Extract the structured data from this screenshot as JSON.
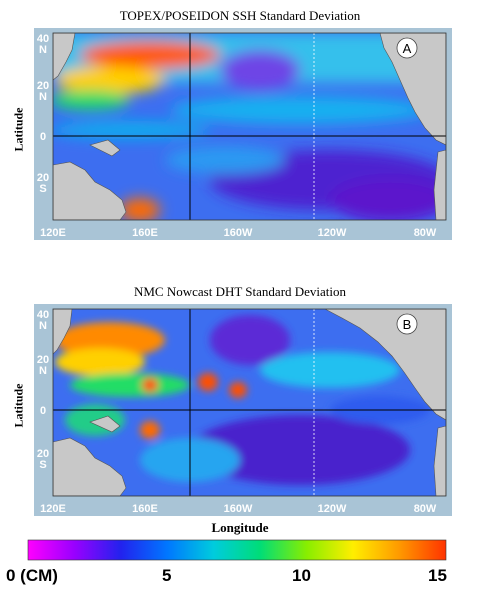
{
  "panels": [
    {
      "title": "TOPEX/POSEIDON SSH Standard Deviation",
      "badge": "A",
      "ylabel": "Latitude",
      "lat_labels": [
        [
          "40",
          "N"
        ],
        [
          "20",
          "N"
        ],
        [
          "0",
          ""
        ],
        [
          "20",
          "S"
        ]
      ],
      "lon_labels": [
        "120E",
        "160E",
        "160W",
        "120W",
        "80W"
      ]
    },
    {
      "title": "NMC Nowcast DHT Standard Deviation",
      "badge": "B",
      "ylabel": "Latitude",
      "lat_labels": [
        [
          "40",
          "N"
        ],
        [
          "20",
          "N"
        ],
        [
          "0",
          ""
        ],
        [
          "20",
          "S"
        ]
      ],
      "lon_labels": [
        "120E",
        "160E",
        "160W",
        "120W",
        "80W"
      ]
    }
  ],
  "xlabel": "Longitude",
  "colorbar": {
    "unit_label": "0 (CM)",
    "ticks": [
      "5",
      "10",
      "15"
    ],
    "range": [
      0,
      15
    ],
    "colors": [
      "#ff00ff",
      "#9900ff",
      "#2222ee",
      "#0077ff",
      "#00ccdd",
      "#00dd77",
      "#88ee00",
      "#ffee00",
      "#ff9900",
      "#ff3300"
    ]
  },
  "colors": {
    "land": "#c8c8c8",
    "frame": "#a9c4d6",
    "ocean_low": "#4d2bd6",
    "ocean_mid": "#1f8df0",
    "ocean_high": "#ff5a00"
  }
}
